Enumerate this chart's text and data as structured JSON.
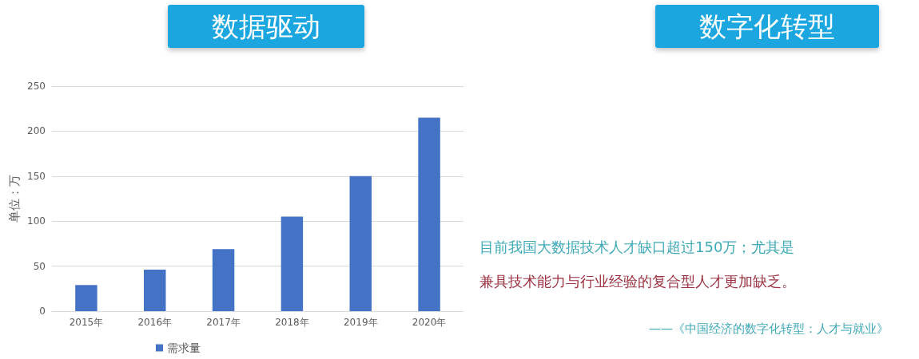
{
  "chart_data": {
    "type": "bar",
    "title": "数据驱动",
    "subtitle": "数字化转型",
    "ylabel": "单位：万",
    "categories": [
      "2015年",
      "2016年",
      "2017年",
      "2018年",
      "2019年",
      "2020年"
    ],
    "series": [
      {
        "name": "需求量",
        "color": "#4472c4",
        "values": [
          29,
          46,
          69,
          105,
          150,
          215
        ]
      }
    ],
    "ylim": [
      0,
      250
    ],
    "yticks": [
      0,
      50,
      100,
      150,
      200,
      250
    ],
    "grid": "y",
    "legend": "bottom",
    "annotations": [
      "目前我国大数据技术人才缺口超过150万；尤其是",
      "兼具技术能力与行业经验的复合型人才更加缺乏。",
      "——《中国经济的数字化转型：人才与就业》"
    ]
  }
}
